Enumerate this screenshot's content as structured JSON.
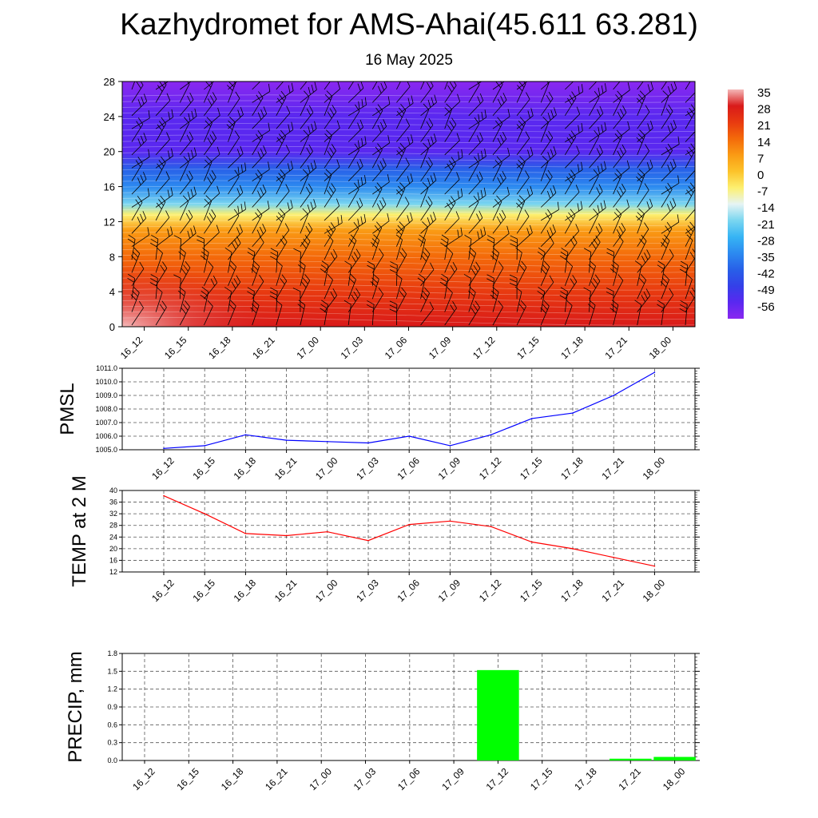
{
  "header": {
    "title": "Kazhydromet for AMS-Ahai(45.611 63.281)",
    "date": "16 May 2025"
  },
  "chart_data": [
    {
      "type": "heatmap",
      "title": "",
      "xlabel": "",
      "ylabel": "",
      "x_tick_labels": [
        "16_12",
        "16_15",
        "16_18",
        "16_21",
        "17_00",
        "17_03",
        "17_06",
        "17_09",
        "17_12",
        "17_15",
        "17_18",
        "17_21",
        "18_00"
      ],
      "y_ticks": [
        0,
        4,
        8,
        12,
        16,
        20,
        24,
        28
      ],
      "ylim": [
        0,
        28
      ],
      "colorbar": {
        "labels": [
          "35",
          "28",
          "21",
          "14",
          "7",
          "0",
          "-7",
          "-14",
          "-21",
          "-28",
          "-35",
          "-42",
          "-49",
          "-56"
        ],
        "colors": [
          "#f4b8b8",
          "#d91a1a",
          "#e83a10",
          "#f46a0a",
          "#fa9b14",
          "#fcc32a",
          "#fdf070",
          "#e6f4f4",
          "#7ad6f0",
          "#36b4f4",
          "#2c8af0",
          "#2860e8",
          "#3440e8",
          "#5a28f0",
          "#8a28f0"
        ]
      },
      "wind_barbs": "black wind barbs at every time step and level",
      "profile": [
        {
          "height": 0,
          "temp": 30
        },
        {
          "height": 4,
          "temp": 22
        },
        {
          "height": 8,
          "temp": 14
        },
        {
          "height": 11,
          "temp": 5
        },
        {
          "height": 12.8,
          "temp": -5
        },
        {
          "height": 14,
          "temp": -18
        },
        {
          "height": 16,
          "temp": -30
        },
        {
          "height": 18,
          "temp": -40
        },
        {
          "height": 20,
          "temp": -50
        },
        {
          "height": 22,
          "temp": -50
        },
        {
          "height": 24,
          "temp": -56
        },
        {
          "height": 28,
          "temp": -60
        }
      ]
    },
    {
      "type": "line",
      "ylabel": "PMSL",
      "categories": [
        "16_12",
        "16_15",
        "16_18",
        "16_21",
        "17_00",
        "17_03",
        "17_06",
        "17_09",
        "17_12",
        "17_15",
        "17_18",
        "17_21",
        "18_00"
      ],
      "y_tick_labels": [
        "1005.0",
        "1006.0",
        "1007.0",
        "1008.0",
        "1009.0",
        "1010.0",
        "1011.0"
      ],
      "ylim": [
        1005.0,
        1011.0
      ],
      "series": [
        {
          "values": [
            1005.1,
            1005.3,
            1006.1,
            1005.7,
            1005.6,
            1005.5,
            1006.0,
            1005.3,
            1006.1,
            1007.3,
            1007.7,
            1009.0,
            1010.7
          ],
          "color": "#0000ff"
        }
      ]
    },
    {
      "type": "line",
      "ylabel": "TEMP at 2 M",
      "categories": [
        "16_12",
        "16_15",
        "16_18",
        "16_21",
        "17_00",
        "17_03",
        "17_06",
        "17_09",
        "17_12",
        "17_15",
        "17_18",
        "17_21",
        "18_00"
      ],
      "y_tick_labels": [
        "12",
        "16",
        "20",
        "24",
        "28",
        "32",
        "36",
        "40"
      ],
      "ylim": [
        12,
        40
      ],
      "series": [
        {
          "values": [
            38.2,
            32.0,
            25.2,
            24.5,
            25.8,
            22.8,
            28.3,
            29.5,
            27.6,
            22.3,
            20.0,
            17.0,
            14.0
          ],
          "color": "#ff0000"
        }
      ]
    },
    {
      "type": "bar",
      "ylabel": "PRECIP, mm",
      "categories": [
        "16_12",
        "16_15",
        "16_18",
        "16_21",
        "17_00",
        "17_03",
        "17_06",
        "17_09",
        "17_12",
        "17_15",
        "17_18",
        "17_21",
        "18_00"
      ],
      "y_tick_labels": [
        "0.0",
        "0.3",
        "0.6",
        "0.9",
        "1.2",
        "1.5",
        "1.8"
      ],
      "ylim": [
        0,
        1.8
      ],
      "values": [
        0,
        0,
        0,
        0,
        0,
        0,
        0,
        0,
        1.52,
        0,
        0,
        0.03,
        0.06
      ],
      "color": "#00ff00"
    }
  ]
}
